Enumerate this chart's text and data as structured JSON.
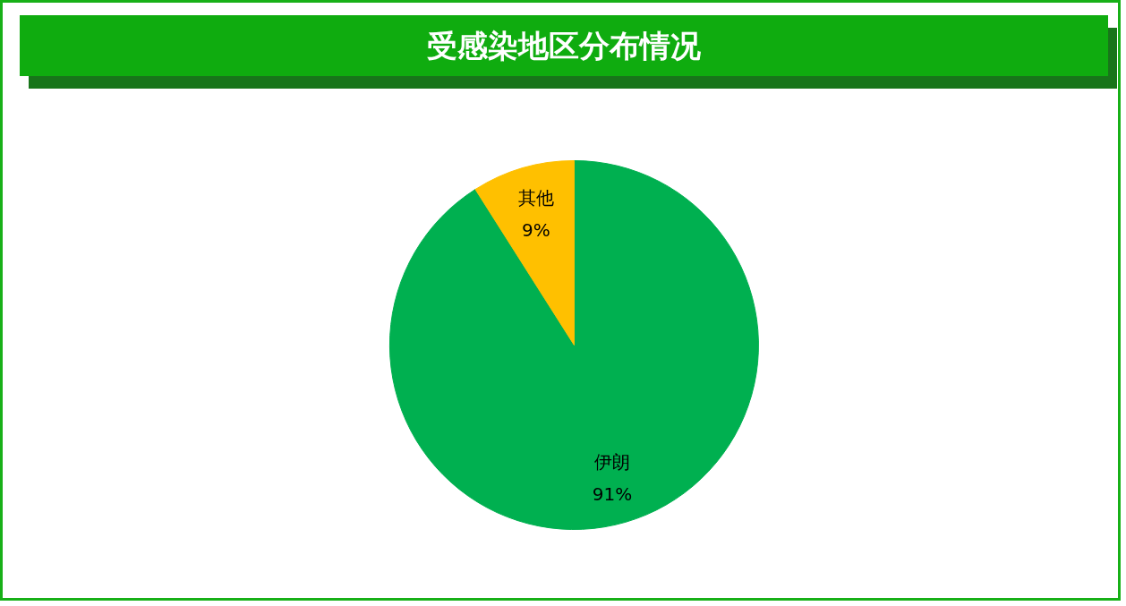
{
  "chart_data": {
    "type": "pie",
    "title": "受感染地区分布情况",
    "categories": [
      "伊朗",
      "其他"
    ],
    "values": [
      91,
      9
    ],
    "colors": [
      "#00b050",
      "#ffc000"
    ],
    "value_labels": [
      "91%",
      "9%"
    ]
  }
}
